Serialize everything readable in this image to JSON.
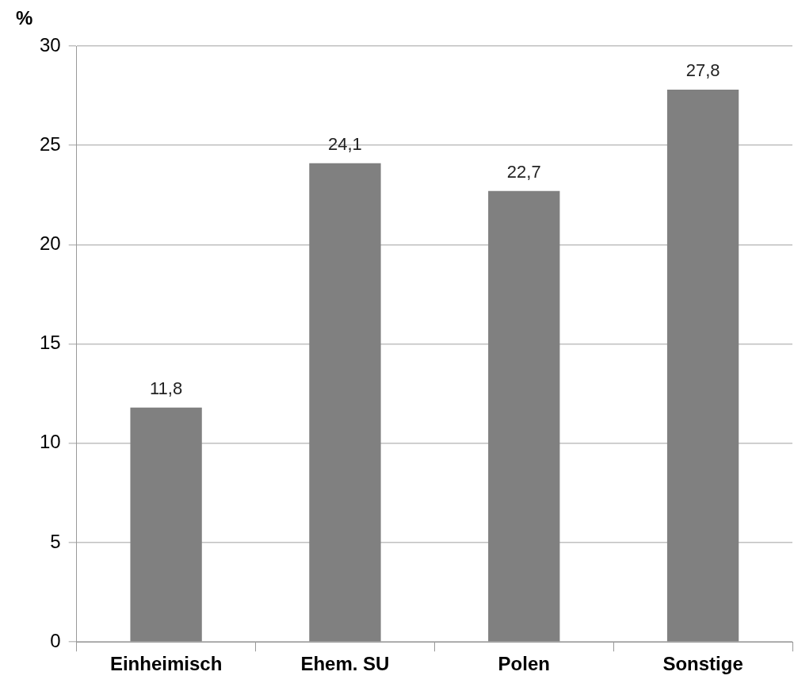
{
  "chart_data": {
    "type": "bar",
    "ylabel": "%",
    "categories": [
      "Einheimisch",
      "Ehem. SU",
      "Polen",
      "Sonstige"
    ],
    "values": [
      11.8,
      24.1,
      22.7,
      27.8
    ],
    "color": "#808080",
    "value_labels": [
      "11,8",
      "24,1",
      "22,7",
      "27,8"
    ],
    "ylim": [
      0,
      30
    ],
    "yticks": [
      0,
      5,
      10,
      15,
      20,
      25,
      30
    ],
    "grid": "y",
    "legend": false
  }
}
